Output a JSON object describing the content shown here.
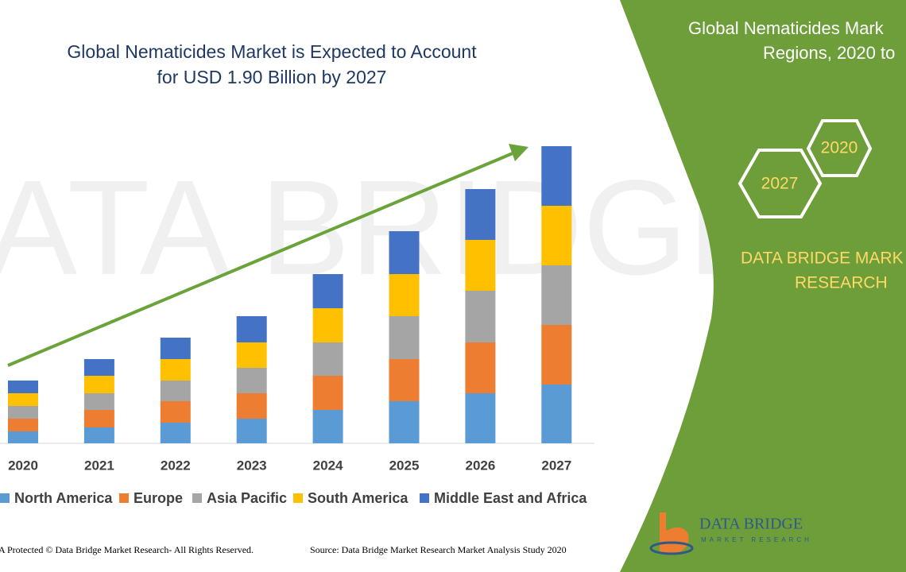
{
  "chart_data": {
    "type": "stacked-bar",
    "title": "Global Nematicides Market is Expected to Account",
    "subtitle": "for USD 1.90 Billion by 2027",
    "categories": [
      "2020",
      "2021",
      "2022",
      "2023",
      "2024",
      "2025",
      "2026",
      "2027"
    ],
    "series": [
      {
        "name": "North America",
        "color": "#5b9bd5",
        "values": [
          15,
          20,
          26,
          31,
          42,
          53,
          63,
          74
        ]
      },
      {
        "name": "Europe",
        "color": "#ed7d31",
        "values": [
          16,
          22,
          27,
          32,
          43,
          53,
          64,
          75
        ]
      },
      {
        "name": "Asia Pacific",
        "color": "#a5a5a5",
        "values": [
          16,
          21,
          26,
          32,
          42,
          54,
          65,
          75
        ]
      },
      {
        "name": "South America",
        "color": "#ffc000",
        "values": [
          16,
          22,
          27,
          32,
          43,
          53,
          64,
          75
        ]
      },
      {
        "name": "Middle East and Africa",
        "color": "#4472c4",
        "values": [
          16,
          21,
          27,
          33,
          43,
          54,
          64,
          75
        ]
      }
    ],
    "ylim": [
      0,
      400
    ]
  },
  "side_panel": {
    "title_line1": "Global Nematicides Mark",
    "title_line2": "Regions, 2020 to",
    "hex_labels": [
      "2020",
      "2027"
    ],
    "brand_line1": "DATA BRIDGE MARK",
    "brand_line2": "RESEARCH"
  },
  "footer": {
    "rights": "A Protected © Data Bridge Market Research- All Rights Reserved.",
    "source": "Source: Data Bridge Market Research Market Analysis Study 2020",
    "logo": "DATA BRIDGE",
    "logo_sub": "MARKET RESEARCH"
  }
}
